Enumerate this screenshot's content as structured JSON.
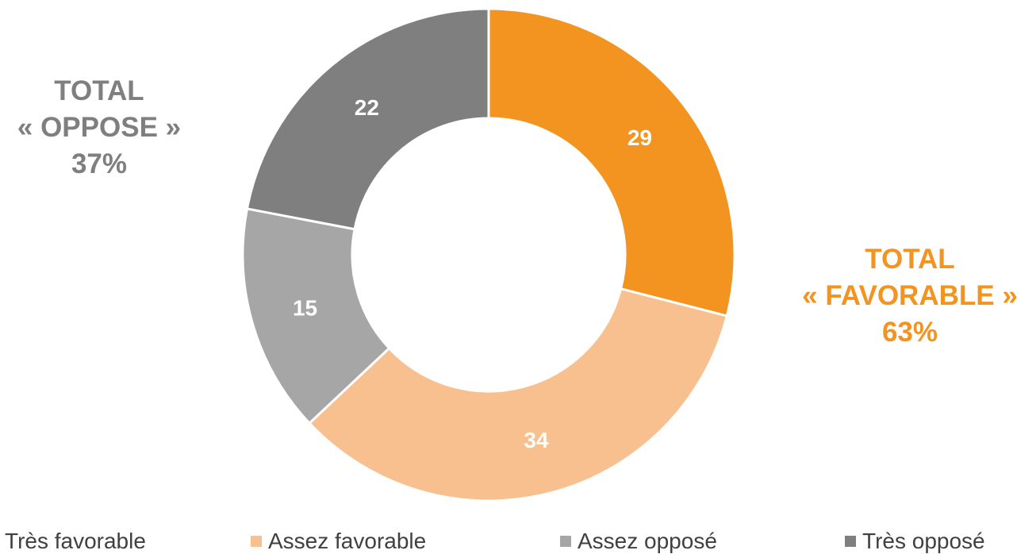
{
  "chart_data": {
    "type": "pie",
    "subtype": "donut",
    "categories": [
      "Très favorable",
      "Assez favorable",
      "Assez opposé",
      "Très opposé"
    ],
    "values": [
      29,
      34,
      15,
      22
    ],
    "colors": [
      "#f39320",
      "#f8c08f",
      "#a6a6a6",
      "#7f7f7f"
    ],
    "data_labels": [
      "29",
      "34",
      "15",
      "22"
    ],
    "legend_position": "bottom",
    "annotations": {
      "oppose": {
        "line1": "TOTAL",
        "line2": "« OPPOSE »",
        "line3": "37%",
        "color": "#7f7f7f"
      },
      "favorable": {
        "line1": "TOTAL",
        "line2": "« FAVORABLE »",
        "line3": "63%",
        "color": "#f39320"
      }
    }
  }
}
